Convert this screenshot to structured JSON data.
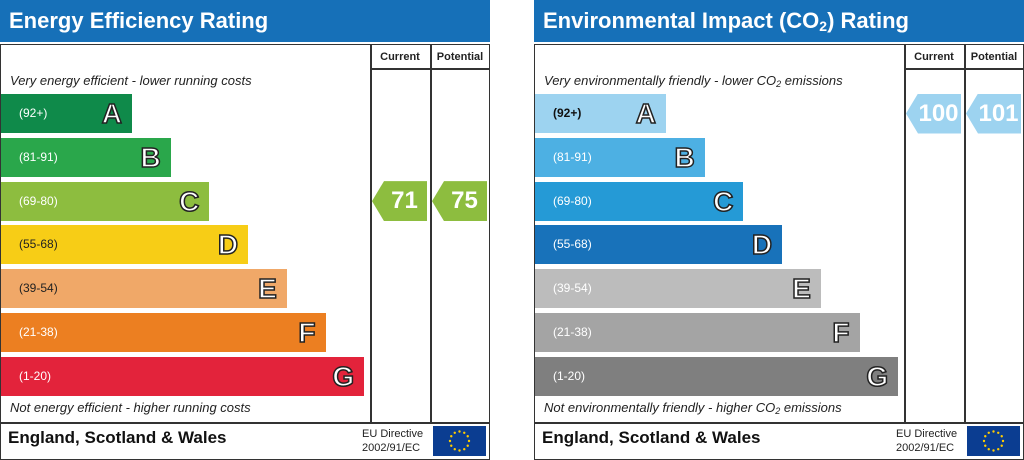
{
  "chart_data": [
    {
      "type": "bar",
      "title": "Energy Efficiency Rating",
      "columns": [
        "Current",
        "Potential"
      ],
      "top_note": "Very energy efficient - lower running costs",
      "bottom_note": "Not energy efficient - higher running costs",
      "bands": [
        {
          "letter": "A",
          "range": "(92+)",
          "color": "#0f8a4a"
        },
        {
          "letter": "B",
          "range": "(81-91)",
          "color": "#2aa74b"
        },
        {
          "letter": "C",
          "range": "(69-80)",
          "color": "#8dbd3f"
        },
        {
          "letter": "D",
          "range": "(55-68)",
          "color": "#f7cd16"
        },
        {
          "letter": "E",
          "range": "(39-54)",
          "color": "#f0a868"
        },
        {
          "letter": "F",
          "range": "(21-38)",
          "color": "#ec7f21"
        },
        {
          "letter": "G",
          "range": "(1-20)",
          "color": "#e3233b"
        }
      ],
      "current": {
        "value": "71",
        "band": "C",
        "color": "#8dbd3f"
      },
      "potential": {
        "value": "75",
        "band": "C",
        "color": "#8dbd3f"
      },
      "footer": {
        "country": "England, Scotland & Wales",
        "directive_line1": "EU Directive",
        "directive_line2": "2002/91/EC"
      }
    },
    {
      "type": "bar",
      "title_pre": "Environmental Impact (CO",
      "title_sub": "2",
      "title_post": ") Rating",
      "columns": [
        "Current",
        "Potential"
      ],
      "top_note_pre": "Very environmentally friendly - lower CO",
      "top_note_sub": "2",
      "top_note_post": " emissions",
      "bottom_note_pre": "Not environmentally friendly - higher CO",
      "bottom_note_sub": "2",
      "bottom_note_post": " emissions",
      "bands": [
        {
          "letter": "A",
          "range": "(92+)",
          "color": "#9dd3f0"
        },
        {
          "letter": "B",
          "range": "(81-91)",
          "color": "#4db0e3"
        },
        {
          "letter": "C",
          "range": "(69-80)",
          "color": "#259ad6"
        },
        {
          "letter": "D",
          "range": "(55-68)",
          "color": "#1872ba"
        },
        {
          "letter": "E",
          "range": "(39-54)",
          "color": "#bcbcbc"
        },
        {
          "letter": "F",
          "range": "(21-38)",
          "color": "#a4a4a4"
        },
        {
          "letter": "G",
          "range": "(1-20)",
          "color": "#7f7f7f"
        }
      ],
      "current": {
        "value": "100",
        "band": "A",
        "color": "#9dd3f0"
      },
      "potential": {
        "value": "101",
        "band": "A",
        "color": "#9dd3f0"
      },
      "footer": {
        "country": "England, Scotland & Wales",
        "directive_line1": "EU Directive",
        "directive_line2": "2002/91/EC"
      }
    }
  ]
}
